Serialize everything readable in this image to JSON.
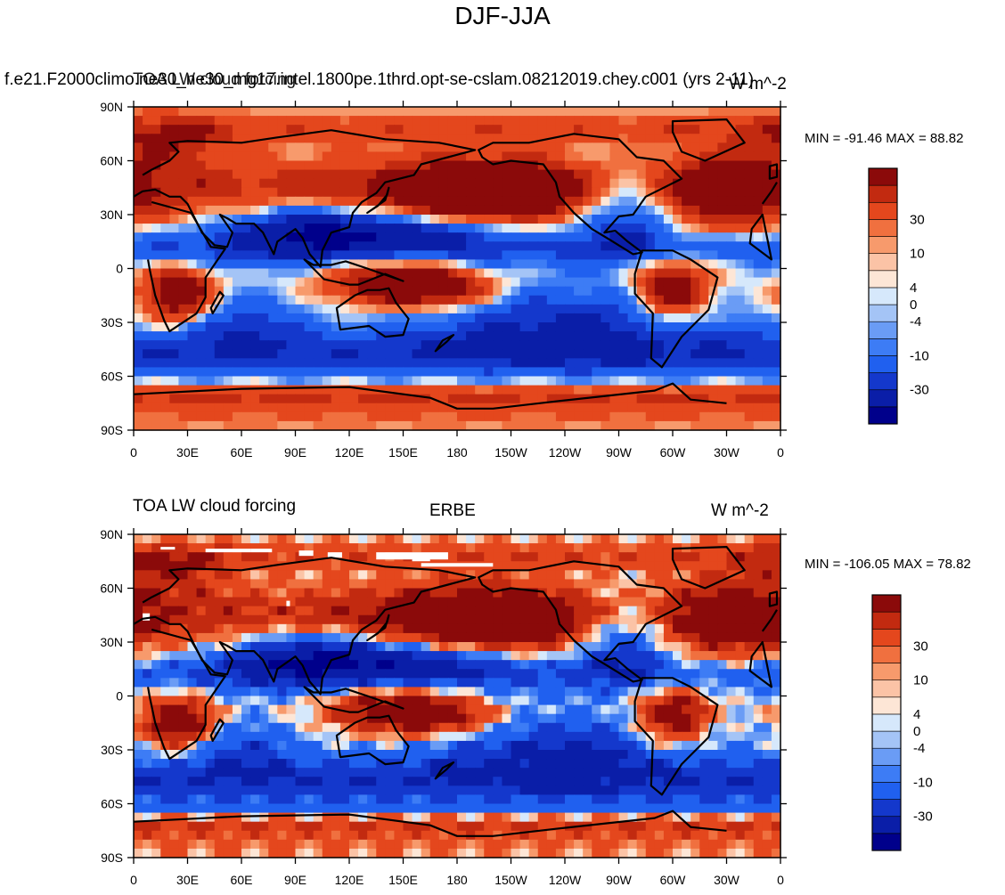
{
  "figure": {
    "main_title": "DJF-JJA"
  },
  "panel1": {
    "left_title": "f.e21.F2000climo.ne30_ne30_mg17.intel.1800pe.1thrd.opt-se-cslam.08212019.chey.c001 (yrs 2-11)",
    "overlap_title": "TOA LW cloud forcing",
    "right_title": "W m^-2",
    "stats": "MIN = -91.46 MAX =  88.82"
  },
  "panel2": {
    "left_title": "TOA LW cloud forcing",
    "center_title": "ERBE",
    "right_title": "W m^-2",
    "stats": "MIN = -106.05 MAX =  78.82"
  },
  "colors": {
    "levels": [
      "#00008b",
      "#0a1ea8",
      "#1438cc",
      "#2060ef",
      "#3d7cf5",
      "#6a9cf5",
      "#a4c4f6",
      "#d6e8fb",
      "#fde6d6",
      "#fbc3a6",
      "#f79a6c",
      "#f0703f",
      "#e4471d",
      "#c22a10",
      "#8b0a0a"
    ],
    "land_outline": "#000000",
    "missing": "#ffffff"
  },
  "chart_data": [
    {
      "type": "heatmap",
      "title": "TOA LW cloud forcing",
      "subtitle": "f.e21.F2000climo.ne30_ne30_mg17.intel.1800pe.1thrd.opt-se-cslam.08212019.chey.c001 (yrs 2-11)",
      "units": "W m^-2",
      "xlim": [
        0,
        360
      ],
      "ylim": [
        -90,
        90
      ],
      "xticks": [
        "0",
        "30E",
        "60E",
        "90E",
        "120E",
        "150E",
        "180",
        "150W",
        "120W",
        "90W",
        "60W",
        "30W",
        "0"
      ],
      "yticks": [
        "90S",
        "60S",
        "30S",
        "0",
        "30N",
        "60N",
        "90N"
      ],
      "colorbar_labels": [
        "-30",
        "-10",
        "-4",
        "0",
        "4",
        "10",
        "30"
      ],
      "min": -91.46,
      "max": 88.82
    },
    {
      "type": "heatmap",
      "title": "TOA LW cloud forcing",
      "subtitle": "ERBE",
      "units": "W m^-2",
      "xlim": [
        0,
        360
      ],
      "ylim": [
        -90,
        90
      ],
      "xticks": [
        "0",
        "30E",
        "60E",
        "90E",
        "120E",
        "150E",
        "180",
        "150W",
        "120W",
        "90W",
        "60W",
        "30W",
        "0"
      ],
      "yticks": [
        "90S",
        "60S",
        "30S",
        "0",
        "30N",
        "60N",
        "90N"
      ],
      "colorbar_labels": [
        "-30",
        "-10",
        "-4",
        "0",
        "4",
        "10",
        "30"
      ],
      "min": -106.05,
      "max": 78.82
    }
  ]
}
